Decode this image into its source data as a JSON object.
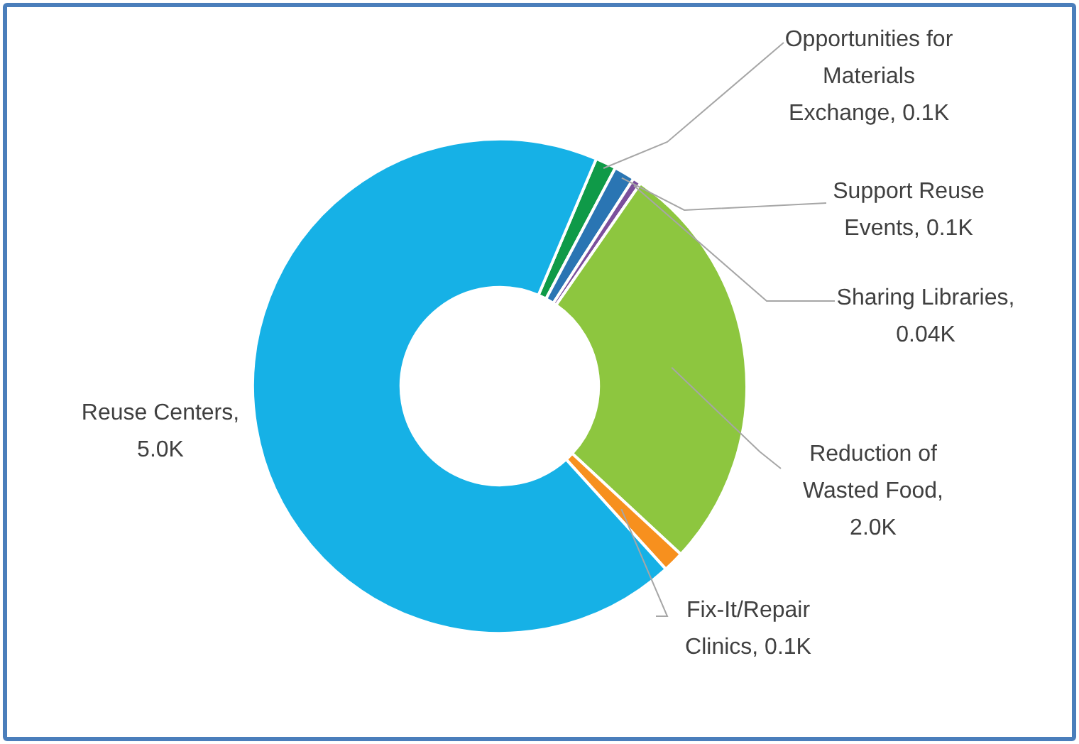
{
  "chart_data": {
    "type": "donut",
    "categories": [
      "Opportunities for Materials Exchange",
      "Support Reuse Events",
      "Sharing Libraries",
      "Reduction of Wasted Food",
      "Fix-It/Repair Clinics",
      "Reuse Centers"
    ],
    "values": [
      0.1,
      0.1,
      0.04,
      2.0,
      0.1,
      5.0
    ],
    "value_labels": [
      ", 0.1K",
      ", 0.1K",
      ", 0.04K",
      ", 2.0K",
      ", 0.1K",
      ", 5.0K"
    ],
    "colors": [
      "#0f9a48",
      "#2a75b3",
      "#7b4f9c",
      "#8dc63f",
      "#f7901e",
      "#16b1e6"
    ],
    "legend": false
  }
}
